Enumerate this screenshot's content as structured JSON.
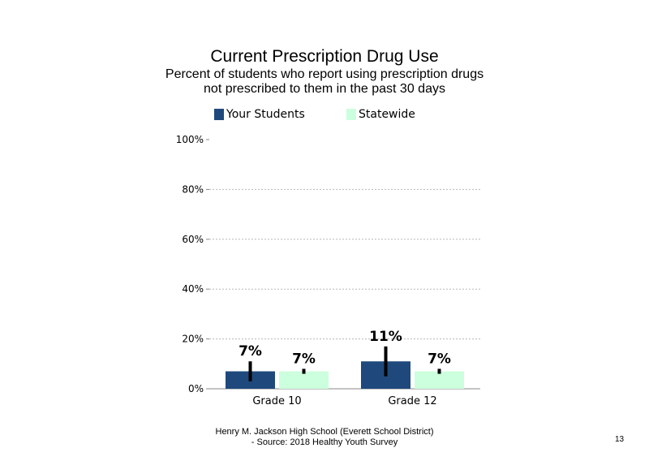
{
  "chart_data": {
    "type": "bar",
    "title": "Current Prescription Drug Use",
    "subtitle_lines": [
      "Percent of students who report using prescription drugs",
      "not prescribed to them in the past 30 days"
    ],
    "categories": [
      "Grade 10",
      "Grade 12"
    ],
    "series": [
      {
        "name": "Your Students",
        "values": [
          7,
          11
        ],
        "labels": [
          "7%",
          "11%"
        ],
        "error_low": [
          3,
          5
        ],
        "error_high": [
          11,
          17
        ],
        "color": "#1f497d"
      },
      {
        "name": "Statewide",
        "values": [
          7,
          7
        ],
        "labels": [
          "7%",
          "7%"
        ],
        "error_low": [
          6,
          6
        ],
        "error_high": [
          8,
          8
        ],
        "color": "#ccffdd"
      }
    ],
    "y_ticks": [
      0,
      20,
      40,
      60,
      80,
      100
    ],
    "y_tick_labels": [
      "0%",
      "20%",
      "40%",
      "60%",
      "80%",
      "100%"
    ],
    "ylim": [
      0,
      100
    ],
    "grid": true,
    "legend_position": "top"
  },
  "footer": {
    "line1": "Henry M. Jackson High School (Everett School District)",
    "line2": "- Source: 2018 Healthy Youth Survey"
  },
  "page_number": "13"
}
